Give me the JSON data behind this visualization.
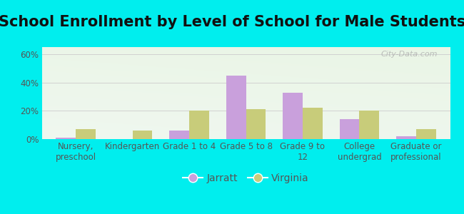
{
  "title": "School Enrollment by Level of School for Male Students",
  "categories": [
    "Nursery,\npreschool",
    "Kindergarten",
    "Grade 1 to 4",
    "Grade 5 to 8",
    "Grade 9 to\n12",
    "College\nundergrad",
    "Graduate or\nprofessional"
  ],
  "jarratt": [
    1,
    0,
    6,
    45,
    33,
    14,
    2
  ],
  "virginia": [
    7,
    6,
    20,
    21,
    22,
    20,
    7
  ],
  "jarratt_color": "#c9a0dc",
  "virginia_color": "#c8cc7a",
  "bar_width": 0.35,
  "ylim": [
    0,
    65
  ],
  "yticks": [
    0,
    20,
    40,
    60
  ],
  "ytick_labels": [
    "0%",
    "20%",
    "40%",
    "60%"
  ],
  "bg_color": "#00EEEE",
  "title_fontsize": 15,
  "axis_fontsize": 8.5,
  "legend_fontsize": 10,
  "watermark": "City-Data.com",
  "title_color": "#111111"
}
